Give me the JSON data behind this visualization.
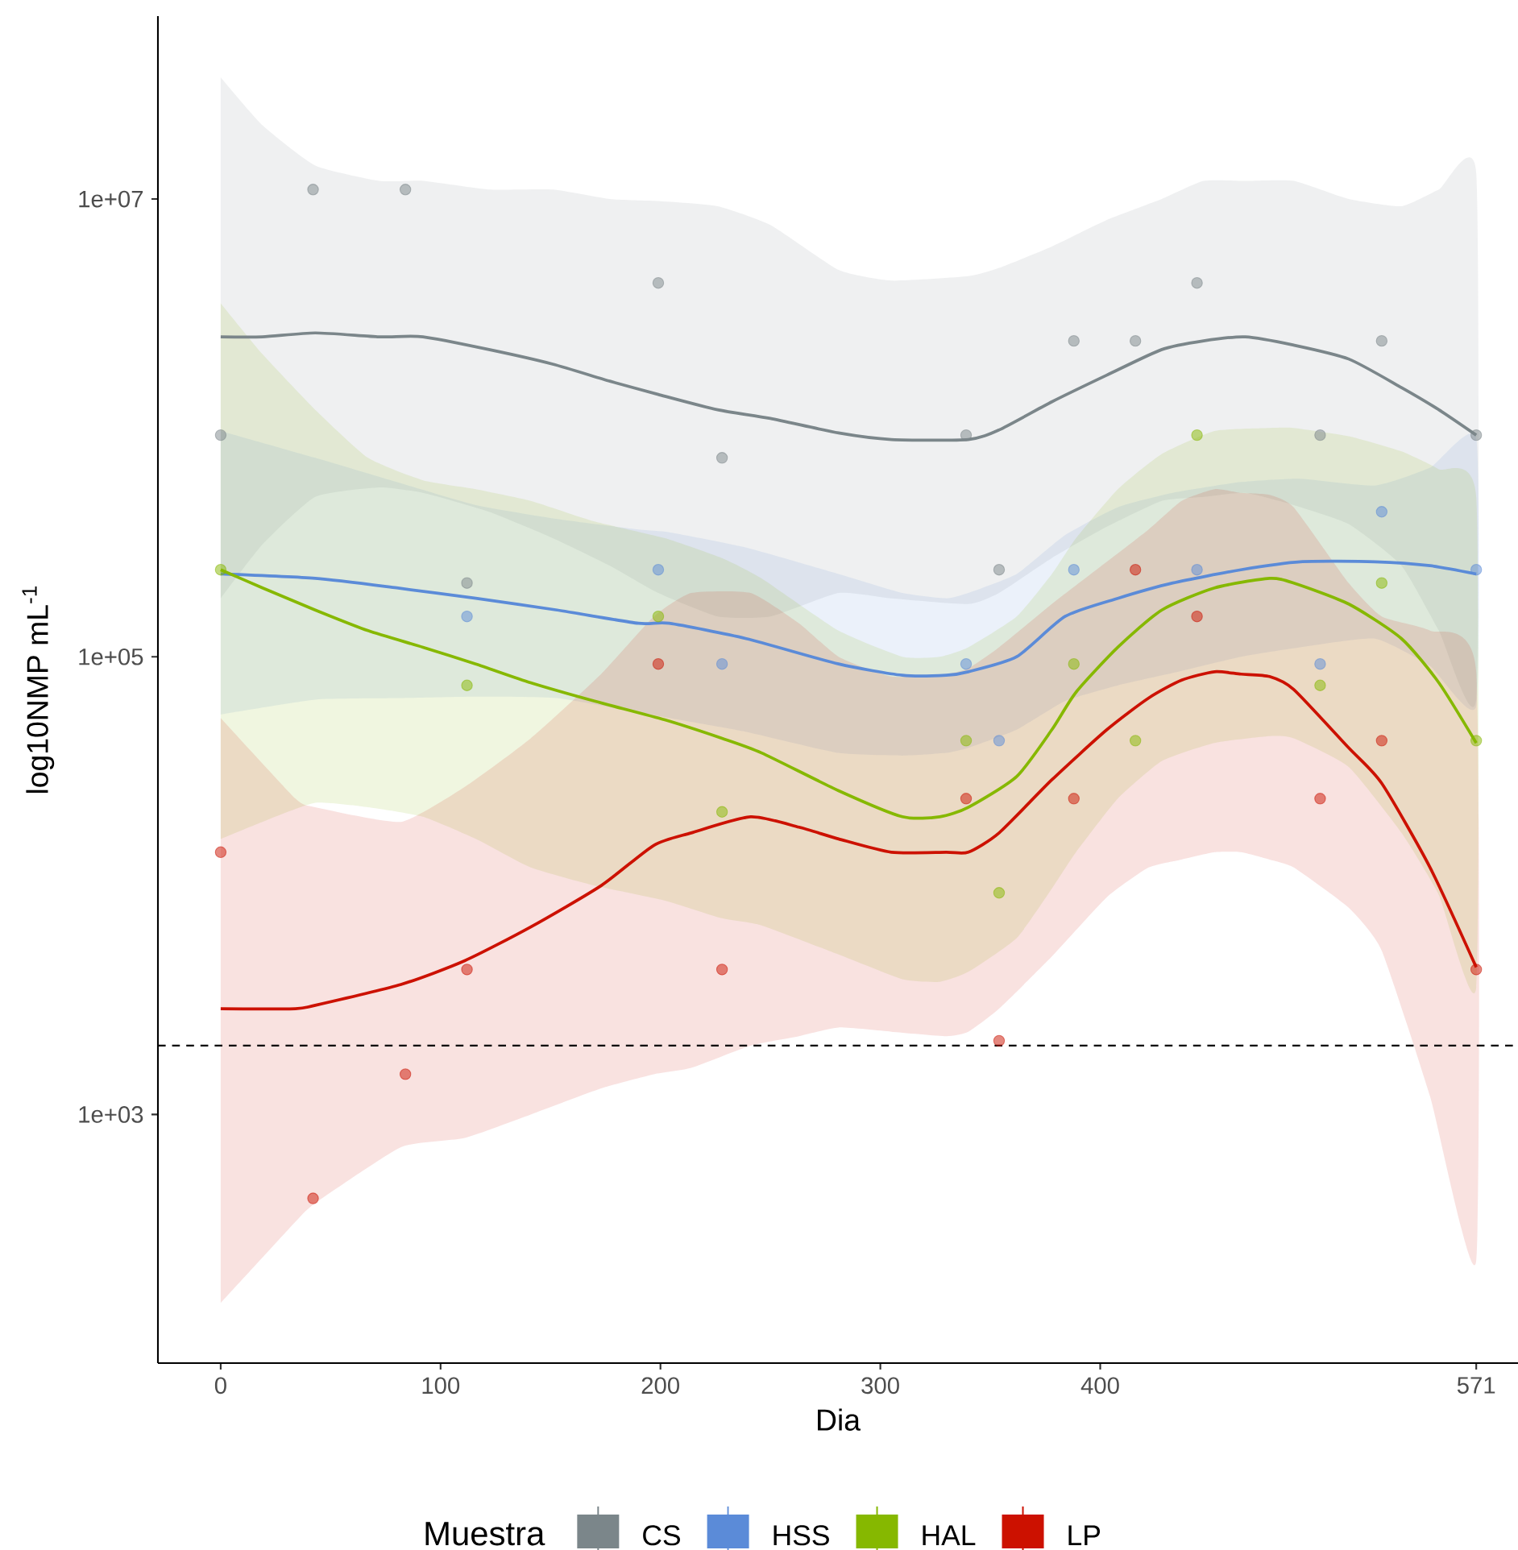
{
  "chart_data": {
    "type": "line",
    "xlabel": "Dia",
    "ylabel": "log10NMP mL$^{-1}$",
    "legend_title": "Muestra",
    "legend": "bottom",
    "log": "y",
    "xlim": [
      -28.55,
      590
    ],
    "xticks": [
      0,
      100,
      200,
      300,
      400,
      571
    ],
    "ylim": [
      82,
      63000000
    ],
    "yticks": [
      {
        "value": 1000,
        "label": "1e+03"
      },
      {
        "value": 100000,
        "label": "1e+05"
      },
      {
        "value": 10000000,
        "label": "1e+07"
      }
    ],
    "ref_lines": [
      {
        "axis": "y",
        "value": 2000,
        "color": "#000000",
        "line_style": "dashed"
      }
    ],
    "x": [
      0,
      42,
      84,
      112,
      199,
      228,
      339,
      354,
      388,
      416,
      444,
      500,
      528,
      571
    ],
    "series": [
      {
        "name": "CS",
        "type": "scatter",
        "marker": "circle",
        "color": "#7b868a",
        "values": [
          930000,
          11000000,
          11000000,
          210000,
          4300000,
          740000,
          930000,
          240000,
          2400000,
          2400000,
          4300000,
          930000,
          2400000,
          930000
        ]
      },
      {
        "type": "line",
        "color": "#7b868a",
        "x": [
          0,
          19,
          43,
          72,
          92,
          122,
          151,
          177,
          199,
          226,
          250,
          281,
          305,
          340,
          354,
          378,
          403,
          428,
          447,
          466,
          488,
          513,
          537,
          554,
          571
        ],
        "values": [
          2500000,
          2500000,
          2600000,
          2500000,
          2500000,
          2200000,
          1900000,
          1600000,
          1400000,
          1200000,
          1100000,
          950000,
          890000,
          890000,
          980000,
          1300000,
          1700000,
          2200000,
          2400000,
          2500000,
          2300000,
          2000000,
          1500000,
          1200000,
          930000
        ],
        "upper": [
          34000000,
          21000000,
          14000000,
          12000000,
          12000000,
          11000000,
          11000000,
          10000000,
          9800000,
          9300000,
          7700000,
          4900000,
          4400000,
          4600000,
          5000000,
          6200000,
          8100000,
          10000000,
          12000000,
          12000000,
          12000000,
          10000000,
          9300000,
          11000000,
          13000000
        ],
        "lower": [
          180000,
          310000,
          500000,
          550000,
          520000,
          430000,
          330000,
          250000,
          190000,
          150000,
          150000,
          190000,
          180000,
          170000,
          190000,
          270000,
          370000,
          480000,
          500000,
          520000,
          460000,
          380000,
          250000,
          130000,
          66000
        ]
      },
      {
        "name": "HSS",
        "type": "scatter",
        "marker": "circle",
        "color": "#5b8bd8",
        "values": [
          null,
          null,
          null,
          150000,
          240000,
          93000,
          93000,
          43000,
          240000,
          null,
          240000,
          93000,
          430000,
          240000
        ]
      },
      {
        "type": "line",
        "color": "#5b8bd8",
        "x": [
          0,
          43,
          80,
          116,
          153,
          190,
          204,
          239,
          281,
          310,
          330,
          340,
          362,
          384,
          408,
          433,
          464,
          491,
          525,
          550,
          571
        ],
        "values": [
          230000,
          220000,
          200000,
          180000,
          160000,
          140000,
          140000,
          120000,
          93000,
          83000,
          83000,
          86000,
          100000,
          150000,
          180000,
          210000,
          240000,
          260000,
          260000,
          250000,
          230000
        ],
        "upper": [
          970000,
          740000,
          580000,
          460000,
          400000,
          360000,
          350000,
          300000,
          230000,
          190000,
          180000,
          190000,
          230000,
          340000,
          450000,
          520000,
          580000,
          600000,
          560000,
          670000,
          900000
        ],
        "lower": [
          56000,
          65000,
          66000,
          67000,
          66000,
          57000,
          54000,
          47000,
          38000,
          37000,
          38000,
          40000,
          48000,
          64000,
          75000,
          85000,
          100000,
          110000,
          120000,
          91000,
          61000
        ]
      },
      {
        "name": "HAL",
        "type": "scatter",
        "marker": "circle",
        "color": "#86b800",
        "values": [
          240000,
          null,
          null,
          75000,
          150000,
          21000,
          43000,
          9300,
          93000,
          43000,
          930000,
          75000,
          210000,
          43000
        ]
      },
      {
        "type": "line",
        "color": "#86b800",
        "x": [
          0,
          19,
          43,
          67,
          92,
          116,
          141,
          170,
          202,
          228,
          246,
          281,
          310,
          327,
          340,
          362,
          378,
          389,
          408,
          428,
          452,
          477,
          488,
          513,
          537,
          554,
          571
        ],
        "values": [
          240000,
          200000,
          160000,
          130000,
          110000,
          93000,
          77000,
          64000,
          53000,
          44000,
          38000,
          26000,
          20000,
          20000,
          22000,
          30000,
          48000,
          70000,
          110000,
          160000,
          200000,
          220000,
          210000,
          170000,
          120000,
          77000,
          42000
        ],
        "upper": [
          3500000,
          2100000,
          1200000,
          740000,
          590000,
          540000,
          480000,
          390000,
          330000,
          270000,
          220000,
          130000,
          100000,
          100000,
          110000,
          150000,
          230000,
          330000,
          540000,
          770000,
          970000,
          1000000,
          1000000,
          920000,
          790000,
          660000,
          500000
        ],
        "lower": [
          16000,
          19000,
          23000,
          22000,
          20000,
          16000,
          12000,
          10000,
          8600,
          7200,
          6700,
          5000,
          3900,
          3800,
          4200,
          5900,
          9700,
          14000,
          24000,
          35000,
          42000,
          45000,
          44000,
          33000,
          17000,
          9100,
          3600
        ]
      },
      {
        "name": "LP",
        "type": "scatter",
        "marker": "circle",
        "color": "#cc1100",
        "values": [
          14000,
          430,
          1500,
          4300,
          93000,
          4300,
          24000,
          2100,
          24000,
          240000,
          150000,
          24000,
          43000,
          4300
        ]
      },
      {
        "type": "line",
        "color": "#cc1100",
        "x": [
          0,
          34,
          43,
          82,
          111,
          141,
          173,
          197,
          214,
          241,
          263,
          281,
          305,
          330,
          340,
          354,
          378,
          403,
          422,
          437,
          452,
          464,
          477,
          488,
          513,
          528,
          550,
          571
        ],
        "values": [
          2900,
          2900,
          3000,
          3700,
          4700,
          6600,
          10000,
          15000,
          17000,
          20000,
          18000,
          16000,
          14000,
          14000,
          14000,
          17000,
          29000,
          48000,
          66000,
          79000,
          86000,
          84000,
          82000,
          72000,
          40000,
          28000,
          12000,
          4400
        ],
        "upper": [
          54000,
          24000,
          22000,
          19000,
          27000,
          44000,
          84000,
          150000,
          190000,
          190000,
          140000,
          100000,
          82000,
          84000,
          89000,
          110000,
          170000,
          260000,
          360000,
          480000,
          540000,
          520000,
          510000,
          450000,
          210000,
          150000,
          130000,
          86000
        ],
        "lower": [
          150,
          340,
          410,
          720,
          790,
          1000,
          1300,
          1500,
          1600,
          2000,
          2200,
          2400,
          2300,
          2200,
          2300,
          2900,
          4900,
          8900,
          12000,
          13000,
          14000,
          14000,
          13000,
          12000,
          8000,
          5200,
          1200,
          230
        ]
      }
    ]
  }
}
